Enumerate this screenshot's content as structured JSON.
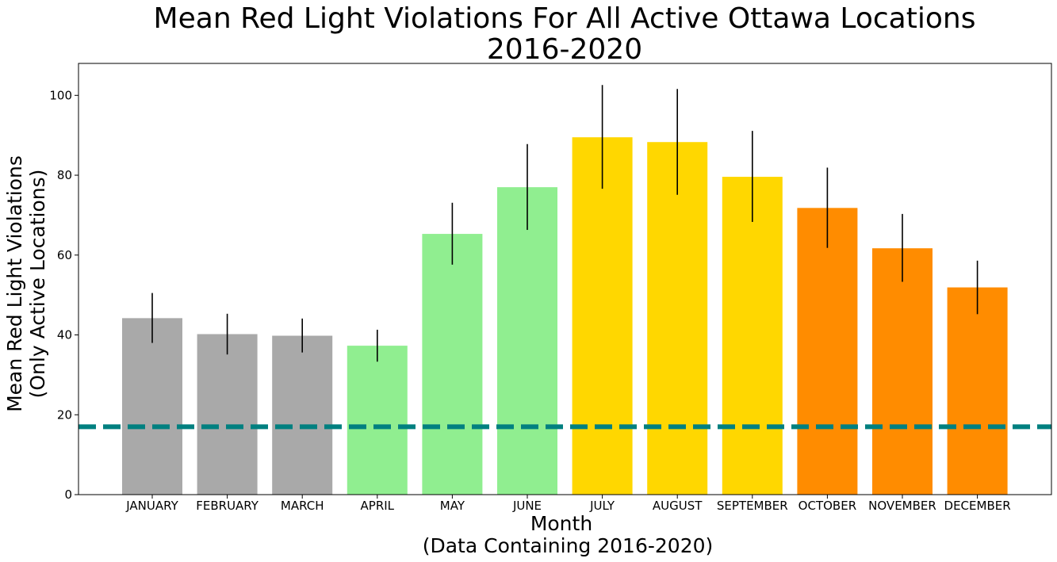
{
  "chart_data": {
    "type": "bar",
    "title_line1": "Mean Red Light Violations For All Active Ottawa Locations",
    "title_line2": "2016-2020",
    "xlabel_line1": "Month",
    "xlabel_line2": "(Data Containing 2016-2020)",
    "ylabel_line1": "Mean Red Light Violations",
    "ylabel_line2": "(Only Active Locations)",
    "categories": [
      "JANUARY",
      "FEBRUARY",
      "MARCH",
      "APRIL",
      "MAY",
      "JUNE",
      "JULY",
      "AUGUST",
      "SEPTEMBER",
      "OCTOBER",
      "NOVEMBER",
      "DECEMBER"
    ],
    "values": [
      44.2,
      40.2,
      39.8,
      37.3,
      65.3,
      77.0,
      89.5,
      88.3,
      79.6,
      71.8,
      61.7,
      51.9
    ],
    "error_low": [
      38.0,
      35.1,
      35.6,
      33.3,
      57.6,
      66.3,
      76.6,
      75.1,
      68.3,
      61.8,
      53.3,
      45.2
    ],
    "error_high": [
      50.5,
      45.3,
      44.1,
      41.3,
      73.1,
      87.8,
      102.6,
      101.6,
      91.1,
      81.9,
      70.3,
      58.6
    ],
    "bar_colors": [
      "#a9a9a9",
      "#a9a9a9",
      "#a9a9a9",
      "#90ee90",
      "#90ee90",
      "#90ee90",
      "#ffd700",
      "#ffd700",
      "#ffd700",
      "#ff8c00",
      "#ff8c00",
      "#ff8c00"
    ],
    "reference_line": {
      "value": 17.0,
      "color": "#008080",
      "style": "dashed"
    },
    "ylim": [
      0,
      108
    ],
    "yticks": [
      0,
      20,
      40,
      60,
      80,
      100
    ],
    "grid": false,
    "legend": "none"
  }
}
